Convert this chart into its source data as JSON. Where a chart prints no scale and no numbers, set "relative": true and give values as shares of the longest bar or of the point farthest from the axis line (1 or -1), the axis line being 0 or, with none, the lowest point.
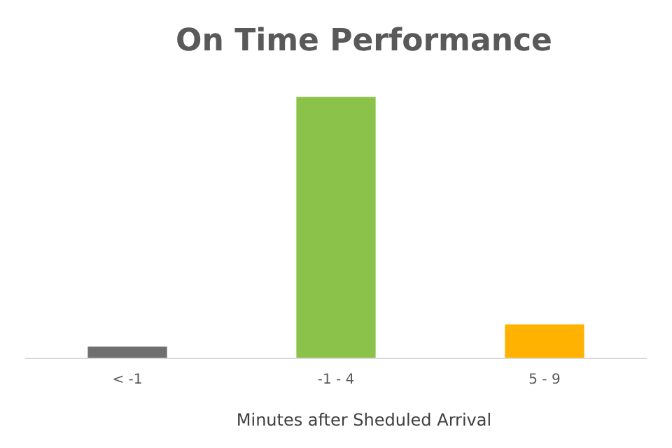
{
  "chart_data": {
    "type": "bar",
    "title": "On Time Performance",
    "xlabel": "Minutes after Sheduled Arrival",
    "categories": [
      "< -1",
      "-1 - 4",
      "5 - 9"
    ],
    "relative": true,
    "values": [
      0.045,
      1,
      0.13
    ],
    "colors": [
      "#6f6f6f",
      "#8bc34a",
      "#ffb300"
    ]
  }
}
